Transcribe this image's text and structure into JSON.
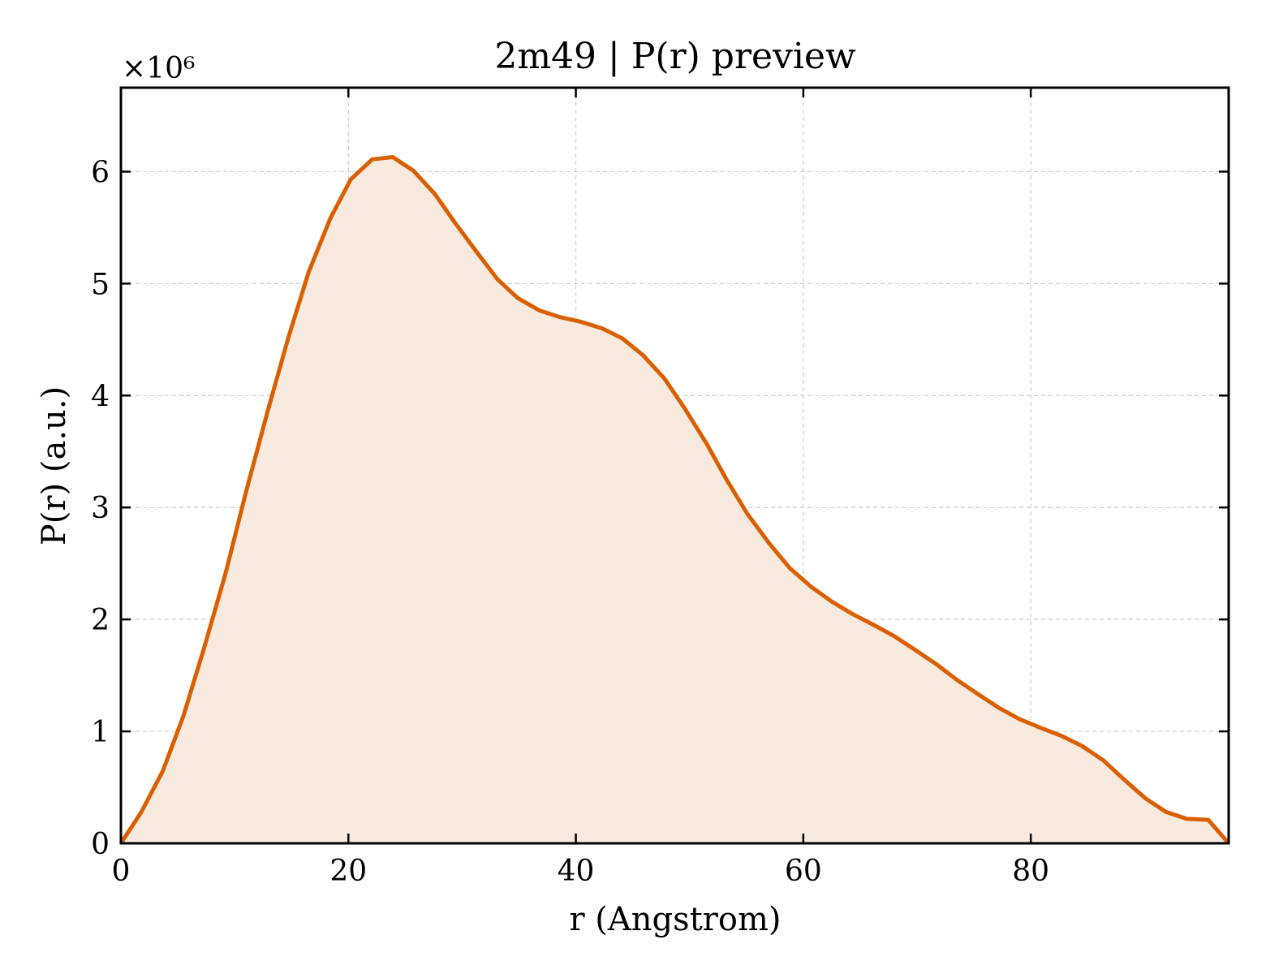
{
  "chart_data": {
    "type": "area",
    "title": "2m49 | P(r) preview",
    "xlabel": "r (Angstrom)",
    "ylabel": "P(r) (a.u.)",
    "y_multiplier_label": "×10⁶",
    "xlim": [
      0,
      97.4
    ],
    "ylim": [
      0,
      6.75
    ],
    "xticks": [
      0,
      20,
      40,
      60,
      80
    ],
    "yticks": [
      0,
      1,
      2,
      3,
      4,
      5,
      6
    ],
    "grid": true,
    "line_color": "#d95f02",
    "fill_color": "#f9eadf",
    "series": [
      {
        "x": [
          0,
          1.8,
          3.7,
          5.5,
          7.3,
          9.2,
          11.0,
          12.9,
          14.7,
          16.5,
          18.4,
          20.2,
          22.1,
          23.9,
          25.7,
          27.6,
          29.4,
          31.3,
          33.1,
          34.9,
          36.8,
          38.6,
          40.4,
          42.3,
          44.1,
          45.9,
          47.8,
          49.6,
          51.5,
          53.3,
          55.1,
          57.0,
          58.8,
          60.7,
          62.5,
          64.3,
          66.2,
          68.0,
          69.8,
          71.7,
          73.5,
          75.4,
          77.2,
          79.0,
          80.9,
          82.7,
          84.5,
          86.4,
          88.2,
          90.1,
          91.9,
          93.7,
          95.6,
          97.4
        ],
        "y": [
          0.0,
          0.28,
          0.65,
          1.14,
          1.74,
          2.41,
          3.14,
          3.86,
          4.51,
          5.1,
          5.58,
          5.93,
          6.11,
          6.13,
          6.01,
          5.8,
          5.54,
          5.28,
          5.04,
          4.87,
          4.76,
          4.7,
          4.66,
          4.6,
          4.51,
          4.36,
          4.15,
          3.88,
          3.57,
          3.24,
          2.94,
          2.68,
          2.46,
          2.29,
          2.16,
          2.05,
          1.95,
          1.85,
          1.73,
          1.6,
          1.46,
          1.33,
          1.21,
          1.11,
          1.03,
          0.96,
          0.87,
          0.74,
          0.57,
          0.4,
          0.28,
          0.22,
          0.21,
          0.0
        ]
      }
    ]
  }
}
